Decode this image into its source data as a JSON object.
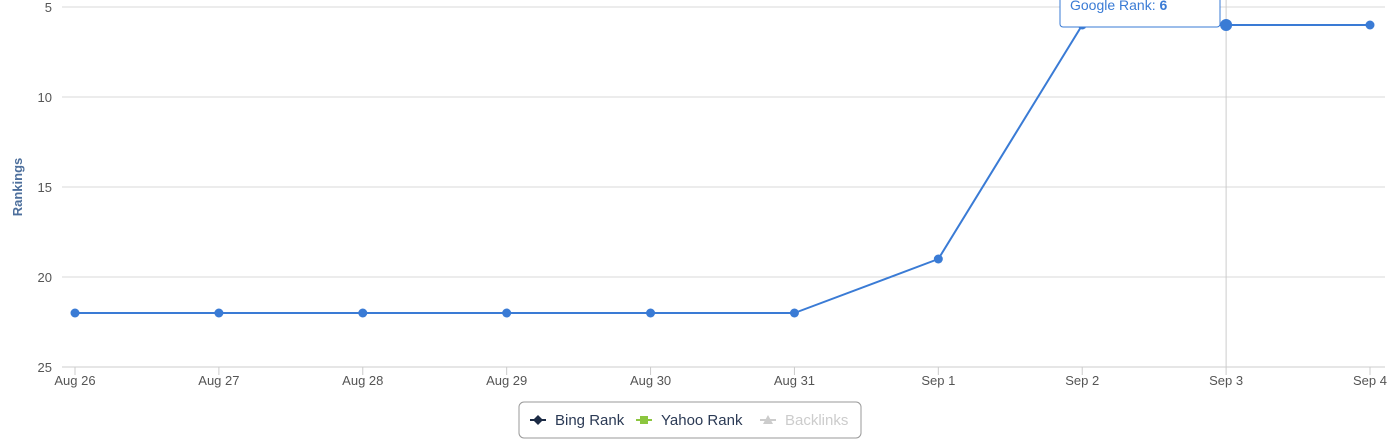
{
  "chart_data": {
    "type": "line",
    "ylabel": "Rankings",
    "ylim": [
      5,
      25
    ],
    "y_reversed": true,
    "y_ticks": [
      5,
      10,
      15,
      20,
      25
    ],
    "categories": [
      "Aug 26",
      "Aug 27",
      "Aug 28",
      "Aug 29",
      "Aug 30",
      "Aug 31",
      "Sep 1",
      "Sep 2",
      "Sep 3",
      "Sep 4"
    ],
    "series": [
      {
        "name": "Google Rank",
        "color": "#3a7bd5",
        "values": [
          22,
          22,
          22,
          22,
          22,
          22,
          19,
          6,
          6,
          6
        ]
      }
    ],
    "legend": [
      {
        "name": "Bing Rank",
        "color": "#1c2b45",
        "marker": "diamond",
        "visible": true
      },
      {
        "name": "Yahoo Rank",
        "color": "#8cc63f",
        "marker": "square",
        "visible": true
      },
      {
        "name": "Backlinks",
        "color": "#cccccc",
        "marker": "triangle",
        "visible": false
      }
    ],
    "legend_position": "bottom-center",
    "grid": true,
    "tooltip": {
      "category_index": 8,
      "label": "Google Rank: ",
      "value": "6"
    }
  }
}
